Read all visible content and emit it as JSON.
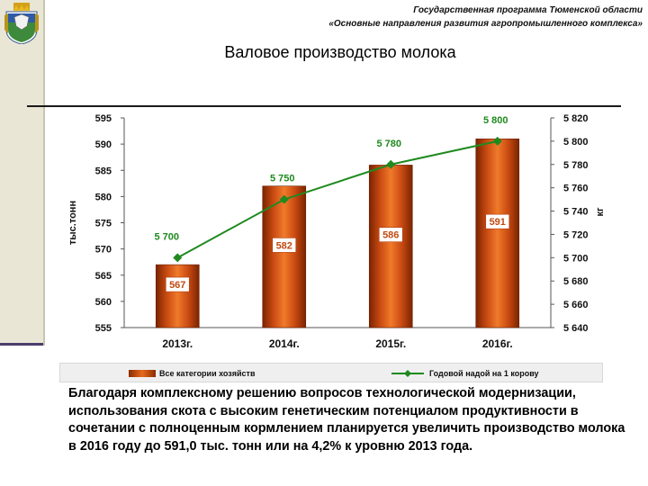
{
  "header": {
    "line1": "Государственная программа Тюменской области",
    "line2": "«Основные направления развития агропромышленного комплекса»"
  },
  "title": "Валовое производство молока",
  "chart_data": {
    "type": "bar+line",
    "categories": [
      "2013г.",
      "2014г.",
      "2015г.",
      "2016г."
    ],
    "series": [
      {
        "name": "Все категории хозяйств",
        "type": "bar",
        "axis": "left",
        "values": [
          567,
          582,
          586,
          591
        ],
        "color": "#d9561a"
      },
      {
        "name": "Годовой надой на 1 корову",
        "type": "line",
        "axis": "right",
        "values": [
          5700,
          5750,
          5780,
          5800
        ],
        "color": "#1f8a1f"
      }
    ],
    "line_value_labels": [
      "5 700",
      "5 750",
      "5 780",
      "5 800"
    ],
    "ylabel_left": "тыс.тонн",
    "ylabel_right": "кг",
    "ylim_left": [
      555,
      595
    ],
    "yticks_left": [
      555,
      560,
      565,
      570,
      575,
      580,
      585,
      590,
      595
    ],
    "ylim_right": [
      5640,
      5820
    ],
    "yticks_right": [
      "5 640",
      "5 660",
      "5 680",
      "5 700",
      "5 720",
      "5 740",
      "5 760",
      "5 780",
      "5 800",
      "5 820"
    ],
    "legend_position": "bottom",
    "grid": false
  },
  "body_text": "Благодаря комплексному решению вопросов технологической модернизации, использования скота с высоким генетическим потенциалом продуктивности в сочетании с полноценным кормлением планируется увеличить производство молока в 2016 году до 591,0 тыс. тонн или на 4,2% к уровню 2013 года."
}
